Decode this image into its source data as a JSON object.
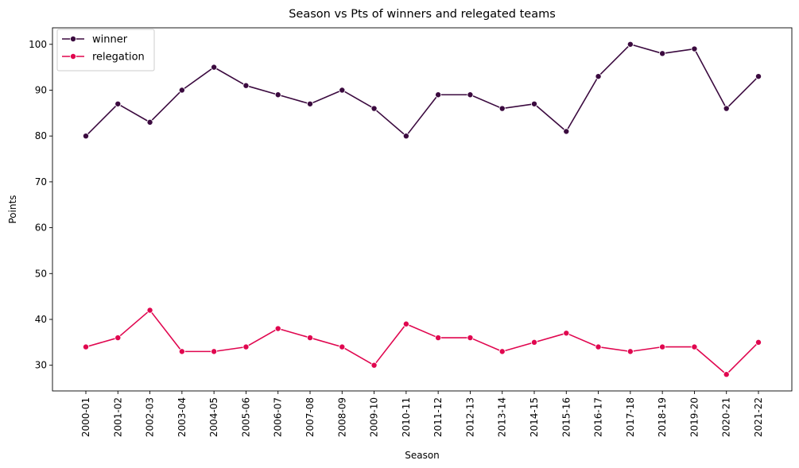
{
  "chart_data": {
    "type": "line",
    "title": "Season vs Pts of winners and relegated teams",
    "xlabel": "Season",
    "ylabel": "Points",
    "categories": [
      "2000-01",
      "2001-02",
      "2002-03",
      "2003-04",
      "2004-05",
      "2005-06",
      "2006-07",
      "2007-08",
      "2008-09",
      "2009-10",
      "2010-11",
      "2011-12",
      "2012-13",
      "2013-14",
      "2014-15",
      "2015-16",
      "2016-17",
      "2017-18",
      "2018-19",
      "2019-20",
      "2020-21",
      "2021-22"
    ],
    "ylim": [
      24.4,
      103.6
    ],
    "yticks": [
      30,
      40,
      50,
      60,
      70,
      80,
      90,
      100
    ],
    "grid": false,
    "legend_position": "top-left",
    "series": [
      {
        "name": "winner",
        "color": "#3b0a3f",
        "values": [
          80,
          87,
          83,
          90,
          95,
          91,
          89,
          87,
          90,
          86,
          80,
          89,
          89,
          86,
          87,
          81,
          93,
          100,
          98,
          99,
          86,
          93
        ]
      },
      {
        "name": "relegation",
        "color": "#e0064f",
        "values": [
          34,
          36,
          42,
          33,
          33,
          34,
          38,
          36,
          34,
          30,
          39,
          36,
          36,
          33,
          35,
          37,
          34,
          33,
          34,
          34,
          28,
          35
        ]
      }
    ]
  }
}
